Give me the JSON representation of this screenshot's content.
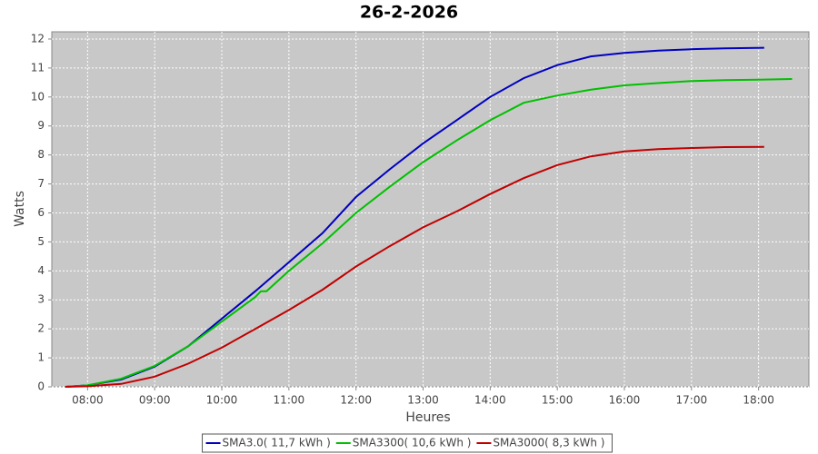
{
  "chart_data": {
    "type": "line",
    "title": "26-2-2026",
    "x_label": "Heures",
    "y_label": "Watts",
    "xlim": [
      "07:28",
      "18:45"
    ],
    "xticks": [
      "08:00",
      "09:00",
      "10:00",
      "11:00",
      "12:00",
      "13:00",
      "14:00",
      "15:00",
      "16:00",
      "17:00",
      "18:00"
    ],
    "ylim": [
      0,
      12.25
    ],
    "yticks": [
      0,
      1,
      2,
      3,
      4,
      5,
      6,
      7,
      8,
      9,
      10,
      11,
      12
    ],
    "grid": true,
    "legend": "bottom",
    "series": [
      {
        "name": "SMA3.0( 11,7 kWh )",
        "color": "#0000c0",
        "x": [
          "07:40",
          "08:00",
          "08:30",
          "09:00",
          "09:30",
          "10:00",
          "10:30",
          "11:00",
          "11:30",
          "12:00",
          "12:30",
          "13:00",
          "13:30",
          "14:00",
          "14:30",
          "15:00",
          "15:30",
          "16:00",
          "16:30",
          "17:00",
          "17:30",
          "18:05"
        ],
        "values": [
          0,
          0.05,
          0.25,
          0.7,
          1.4,
          2.35,
          3.3,
          4.3,
          5.3,
          6.55,
          7.5,
          8.4,
          9.2,
          10.0,
          10.65,
          11.1,
          11.4,
          11.52,
          11.6,
          11.65,
          11.68,
          11.7
        ]
      },
      {
        "name": "SMA3300( 10,6 kWh )",
        "color": "#00c000",
        "x": [
          "07:40",
          "08:00",
          "08:30",
          "09:00",
          "09:30",
          "10:00",
          "10:30",
          "10:35",
          "10:40",
          "11:00",
          "11:30",
          "12:00",
          "12:30",
          "13:00",
          "13:30",
          "14:00",
          "14:30",
          "15:00",
          "15:30",
          "16:00",
          "16:30",
          "17:00",
          "17:30",
          "18:00",
          "18:30"
        ],
        "values": [
          0,
          0.05,
          0.28,
          0.72,
          1.4,
          2.25,
          3.1,
          3.3,
          3.3,
          4.0,
          4.95,
          6.0,
          6.9,
          7.75,
          8.5,
          9.2,
          9.8,
          10.05,
          10.25,
          10.4,
          10.48,
          10.55,
          10.58,
          10.6,
          10.62
        ]
      },
      {
        "name": "SMA3000( 8,3 kWh )",
        "color": "#c00000",
        "x": [
          "07:40",
          "08:00",
          "08:30",
          "09:00",
          "09:30",
          "10:00",
          "10:30",
          "11:00",
          "11:30",
          "12:00",
          "12:30",
          "13:00",
          "13:30",
          "14:00",
          "14:30",
          "15:00",
          "15:30",
          "16:00",
          "16:30",
          "17:00",
          "17:30",
          "18:05"
        ],
        "values": [
          0,
          0.02,
          0.1,
          0.35,
          0.8,
          1.35,
          2.0,
          2.65,
          3.35,
          4.15,
          4.85,
          5.5,
          6.05,
          6.65,
          7.2,
          7.65,
          7.95,
          8.12,
          8.2,
          8.24,
          8.27,
          8.28
        ]
      }
    ]
  }
}
